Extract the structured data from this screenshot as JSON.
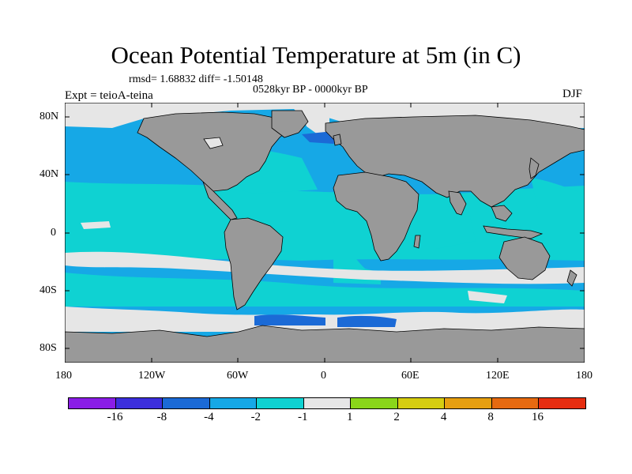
{
  "header": {
    "title": "Ocean Potential Temperature at 5m (in C)",
    "stats": "rmsd= 1.68832 diff= -1.50148",
    "period": "0528kyr BP - 0000kyr BP",
    "experiment": "Expt = teioA-teina",
    "season": "DJF"
  },
  "map": {
    "lon_ticks": [
      "180",
      "120W",
      "60W",
      "0",
      "60E",
      "120E",
      "180"
    ],
    "lat_ticks": [
      "80N",
      "40N",
      "0",
      "40S",
      "80S"
    ],
    "land_color": "#999999",
    "missing_color": "#e6e6e6"
  },
  "colorbar": {
    "labels": [
      "-16",
      "-8",
      "-4",
      "-2",
      "-1",
      "1",
      "2",
      "4",
      "8",
      "16"
    ],
    "colors": [
      "#8a1de6",
      "#3c2fdc",
      "#1b6ad6",
      "#16a8e6",
      "#0fd2d2",
      "#e6e6e6",
      "#8ad61a",
      "#d6cd10",
      "#e69f10",
      "#e66a10",
      "#e62d10"
    ]
  }
}
